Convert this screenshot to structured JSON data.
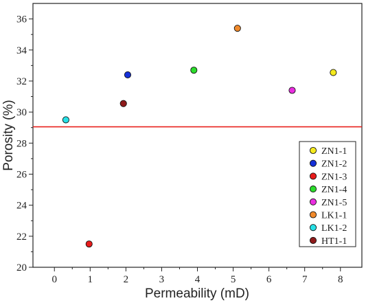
{
  "chart_data": {
    "type": "scatter",
    "title": "",
    "xlabel": "Permeability (mD)",
    "ylabel": "Porosity (%)",
    "xlim": [
      -0.6,
      8.6
    ],
    "ylim": [
      20,
      37
    ],
    "xticks": [
      0,
      1,
      2,
      3,
      4,
      5,
      6,
      7,
      8
    ],
    "yticks": [
      20,
      22,
      24,
      26,
      28,
      30,
      32,
      34,
      36
    ],
    "grid": false,
    "legend_position": "bottom-right",
    "threshold_line": {
      "y": 29.05,
      "color": "#e8201c"
    },
    "series": [
      {
        "name": "ZN1-1",
        "color": "#f5ea1e",
        "x": [
          7.8
        ],
        "y": [
          32.55
        ]
      },
      {
        "name": "ZN1-2",
        "color": "#1530d8",
        "x": [
          2.05
        ],
        "y": [
          32.4
        ]
      },
      {
        "name": "ZN1-3",
        "color": "#e81c1c",
        "x": [
          0.97
        ],
        "y": [
          21.5
        ]
      },
      {
        "name": "ZN1-4",
        "color": "#2cdc2c",
        "x": [
          3.9
        ],
        "y": [
          32.7
        ]
      },
      {
        "name": "ZN1-5",
        "color": "#ea2ee0",
        "x": [
          6.65
        ],
        "y": [
          31.4
        ]
      },
      {
        "name": "LK1-1",
        "color": "#f08a2c",
        "x": [
          5.12
        ],
        "y": [
          35.4
        ]
      },
      {
        "name": "LK1-2",
        "color": "#28e0e6",
        "x": [
          0.32
        ],
        "y": [
          29.5
        ]
      },
      {
        "name": "HT1-1",
        "color": "#8e1a1a",
        "x": [
          1.93
        ],
        "y": [
          30.55
        ]
      }
    ]
  }
}
